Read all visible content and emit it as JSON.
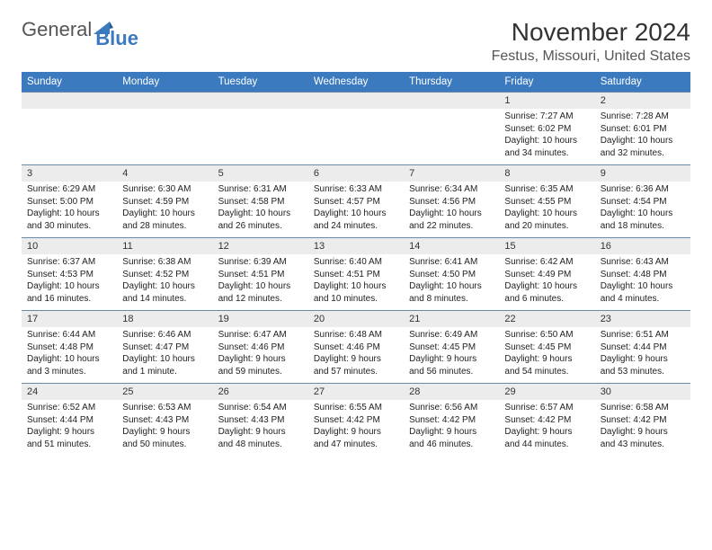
{
  "logo": {
    "general": "General",
    "blue": "Blue"
  },
  "title": "November 2024",
  "location": "Festus, Missouri, United States",
  "colors": {
    "header_bg": "#3b7abf",
    "header_text": "#ffffff",
    "daynum_bg": "#ececec",
    "row_border": "#6a8aa8",
    "text": "#222222",
    "logo_blue": "#3b7abf"
  },
  "weekdays": [
    "Sunday",
    "Monday",
    "Tuesday",
    "Wednesday",
    "Thursday",
    "Friday",
    "Saturday"
  ],
  "weeks": [
    {
      "nums": [
        "",
        "",
        "",
        "",
        "",
        "1",
        "2"
      ],
      "details": [
        null,
        null,
        null,
        null,
        null,
        {
          "sunrise": "Sunrise: 7:27 AM",
          "sunset": "Sunset: 6:02 PM",
          "day1": "Daylight: 10 hours",
          "day2": "and 34 minutes."
        },
        {
          "sunrise": "Sunrise: 7:28 AM",
          "sunset": "Sunset: 6:01 PM",
          "day1": "Daylight: 10 hours",
          "day2": "and 32 minutes."
        }
      ]
    },
    {
      "nums": [
        "3",
        "4",
        "5",
        "6",
        "7",
        "8",
        "9"
      ],
      "details": [
        {
          "sunrise": "Sunrise: 6:29 AM",
          "sunset": "Sunset: 5:00 PM",
          "day1": "Daylight: 10 hours",
          "day2": "and 30 minutes."
        },
        {
          "sunrise": "Sunrise: 6:30 AM",
          "sunset": "Sunset: 4:59 PM",
          "day1": "Daylight: 10 hours",
          "day2": "and 28 minutes."
        },
        {
          "sunrise": "Sunrise: 6:31 AM",
          "sunset": "Sunset: 4:58 PM",
          "day1": "Daylight: 10 hours",
          "day2": "and 26 minutes."
        },
        {
          "sunrise": "Sunrise: 6:33 AM",
          "sunset": "Sunset: 4:57 PM",
          "day1": "Daylight: 10 hours",
          "day2": "and 24 minutes."
        },
        {
          "sunrise": "Sunrise: 6:34 AM",
          "sunset": "Sunset: 4:56 PM",
          "day1": "Daylight: 10 hours",
          "day2": "and 22 minutes."
        },
        {
          "sunrise": "Sunrise: 6:35 AM",
          "sunset": "Sunset: 4:55 PM",
          "day1": "Daylight: 10 hours",
          "day2": "and 20 minutes."
        },
        {
          "sunrise": "Sunrise: 6:36 AM",
          "sunset": "Sunset: 4:54 PM",
          "day1": "Daylight: 10 hours",
          "day2": "and 18 minutes."
        }
      ]
    },
    {
      "nums": [
        "10",
        "11",
        "12",
        "13",
        "14",
        "15",
        "16"
      ],
      "details": [
        {
          "sunrise": "Sunrise: 6:37 AM",
          "sunset": "Sunset: 4:53 PM",
          "day1": "Daylight: 10 hours",
          "day2": "and 16 minutes."
        },
        {
          "sunrise": "Sunrise: 6:38 AM",
          "sunset": "Sunset: 4:52 PM",
          "day1": "Daylight: 10 hours",
          "day2": "and 14 minutes."
        },
        {
          "sunrise": "Sunrise: 6:39 AM",
          "sunset": "Sunset: 4:51 PM",
          "day1": "Daylight: 10 hours",
          "day2": "and 12 minutes."
        },
        {
          "sunrise": "Sunrise: 6:40 AM",
          "sunset": "Sunset: 4:51 PM",
          "day1": "Daylight: 10 hours",
          "day2": "and 10 minutes."
        },
        {
          "sunrise": "Sunrise: 6:41 AM",
          "sunset": "Sunset: 4:50 PM",
          "day1": "Daylight: 10 hours",
          "day2": "and 8 minutes."
        },
        {
          "sunrise": "Sunrise: 6:42 AM",
          "sunset": "Sunset: 4:49 PM",
          "day1": "Daylight: 10 hours",
          "day2": "and 6 minutes."
        },
        {
          "sunrise": "Sunrise: 6:43 AM",
          "sunset": "Sunset: 4:48 PM",
          "day1": "Daylight: 10 hours",
          "day2": "and 4 minutes."
        }
      ]
    },
    {
      "nums": [
        "17",
        "18",
        "19",
        "20",
        "21",
        "22",
        "23"
      ],
      "details": [
        {
          "sunrise": "Sunrise: 6:44 AM",
          "sunset": "Sunset: 4:48 PM",
          "day1": "Daylight: 10 hours",
          "day2": "and 3 minutes."
        },
        {
          "sunrise": "Sunrise: 6:46 AM",
          "sunset": "Sunset: 4:47 PM",
          "day1": "Daylight: 10 hours",
          "day2": "and 1 minute."
        },
        {
          "sunrise": "Sunrise: 6:47 AM",
          "sunset": "Sunset: 4:46 PM",
          "day1": "Daylight: 9 hours",
          "day2": "and 59 minutes."
        },
        {
          "sunrise": "Sunrise: 6:48 AM",
          "sunset": "Sunset: 4:46 PM",
          "day1": "Daylight: 9 hours",
          "day2": "and 57 minutes."
        },
        {
          "sunrise": "Sunrise: 6:49 AM",
          "sunset": "Sunset: 4:45 PM",
          "day1": "Daylight: 9 hours",
          "day2": "and 56 minutes."
        },
        {
          "sunrise": "Sunrise: 6:50 AM",
          "sunset": "Sunset: 4:45 PM",
          "day1": "Daylight: 9 hours",
          "day2": "and 54 minutes."
        },
        {
          "sunrise": "Sunrise: 6:51 AM",
          "sunset": "Sunset: 4:44 PM",
          "day1": "Daylight: 9 hours",
          "day2": "and 53 minutes."
        }
      ]
    },
    {
      "nums": [
        "24",
        "25",
        "26",
        "27",
        "28",
        "29",
        "30"
      ],
      "details": [
        {
          "sunrise": "Sunrise: 6:52 AM",
          "sunset": "Sunset: 4:44 PM",
          "day1": "Daylight: 9 hours",
          "day2": "and 51 minutes."
        },
        {
          "sunrise": "Sunrise: 6:53 AM",
          "sunset": "Sunset: 4:43 PM",
          "day1": "Daylight: 9 hours",
          "day2": "and 50 minutes."
        },
        {
          "sunrise": "Sunrise: 6:54 AM",
          "sunset": "Sunset: 4:43 PM",
          "day1": "Daylight: 9 hours",
          "day2": "and 48 minutes."
        },
        {
          "sunrise": "Sunrise: 6:55 AM",
          "sunset": "Sunset: 4:42 PM",
          "day1": "Daylight: 9 hours",
          "day2": "and 47 minutes."
        },
        {
          "sunrise": "Sunrise: 6:56 AM",
          "sunset": "Sunset: 4:42 PM",
          "day1": "Daylight: 9 hours",
          "day2": "and 46 minutes."
        },
        {
          "sunrise": "Sunrise: 6:57 AM",
          "sunset": "Sunset: 4:42 PM",
          "day1": "Daylight: 9 hours",
          "day2": "and 44 minutes."
        },
        {
          "sunrise": "Sunrise: 6:58 AM",
          "sunset": "Sunset: 4:42 PM",
          "day1": "Daylight: 9 hours",
          "day2": "and 43 minutes."
        }
      ]
    }
  ]
}
